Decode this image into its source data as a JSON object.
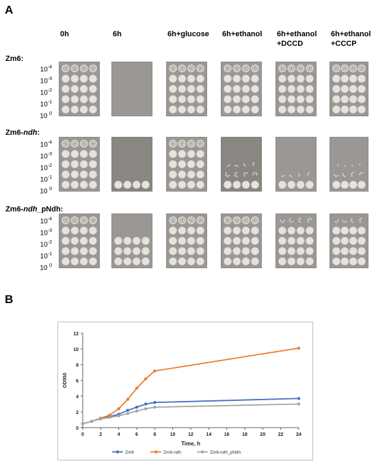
{
  "panels": {
    "a_label": "A",
    "b_label": "B"
  },
  "columns": [
    [
      "0h"
    ],
    [
      "6h"
    ],
    [
      "6h+glucose"
    ],
    [
      "6h+ethanol"
    ],
    [
      "6h+ethanol",
      "+DCCD"
    ],
    [
      "6h+ethanol",
      "+CCCP"
    ]
  ],
  "strains": [
    {
      "prefix": "Zm6",
      "italic": "",
      "suffix": ":"
    },
    {
      "prefix": "Zm6-",
      "italic": "ndh",
      "suffix": ":"
    },
    {
      "prefix": "Zm6-",
      "italic": "ndh",
      "suffix": "_pNdh:"
    }
  ],
  "dilutions": [
    {
      "base": "10",
      "exp": "-4"
    },
    {
      "base": "10",
      "exp": "-3"
    },
    {
      "base": "10",
      "exp": "-2"
    },
    {
      "base": "10",
      "exp": "-1"
    },
    {
      "base": "10 ",
      "exp": "0"
    }
  ],
  "plate_growth": [
    [
      [
        1,
        1,
        1,
        1,
        1
      ],
      [
        0,
        0,
        0,
        0,
        0
      ],
      [
        1,
        1,
        1,
        1,
        1
      ],
      [
        1,
        1,
        1,
        1,
        1
      ],
      [
        1,
        1,
        1,
        1,
        1
      ],
      [
        1,
        1,
        1,
        1,
        1
      ]
    ],
    [
      [
        1,
        1,
        1,
        1,
        1
      ],
      [
        0,
        0,
        0,
        0,
        1
      ],
      [
        1,
        1,
        1,
        1,
        1
      ],
      [
        0,
        0,
        0.3,
        0.6,
        1
      ],
      [
        0,
        0,
        0,
        0.3,
        1
      ],
      [
        0,
        0,
        0.2,
        0.5,
        1
      ]
    ],
    [
      [
        1,
        1,
        1,
        1,
        1
      ],
      [
        0,
        0,
        1,
        1,
        1
      ],
      [
        1,
        1,
        1,
        1,
        1
      ],
      [
        1,
        1,
        1,
        1,
        1
      ],
      [
        0.6,
        1,
        1,
        1,
        1
      ],
      [
        0.5,
        1,
        1,
        1,
        1
      ]
    ]
  ],
  "chart_data": {
    "type": "line",
    "title": "",
    "xlabel": "Time, h",
    "ylabel": "OD550",
    "xlim": [
      0,
      24
    ],
    "ylim": [
      0,
      12
    ],
    "xticks": [
      0,
      2,
      4,
      6,
      8,
      10,
      12,
      14,
      16,
      18,
      20,
      22,
      24
    ],
    "yticks": [
      0,
      2,
      4,
      6,
      8,
      10,
      12
    ],
    "grid": false,
    "legend_position": "bottom",
    "series": [
      {
        "name": "Zm6",
        "color": "#4472c4",
        "x": [
          0,
          1,
          2,
          3,
          4,
          5,
          6,
          7,
          8,
          24
        ],
        "y": [
          0.5,
          0.8,
          1.2,
          1.4,
          1.7,
          2.2,
          2.6,
          3.0,
          3.2,
          3.7
        ]
      },
      {
        "name": "Zm6-ndh",
        "color": "#ed7d31",
        "x": [
          0,
          1,
          2,
          3,
          4,
          5,
          6,
          7,
          8,
          24
        ],
        "y": [
          0.5,
          0.8,
          1.2,
          1.6,
          2.4,
          3.6,
          5.0,
          6.2,
          7.2,
          10.1
        ]
      },
      {
        "name": "Zm6-ndh_pNdh",
        "color": "#a5a5a5",
        "x": [
          0,
          1,
          2,
          3,
          4,
          5,
          6,
          7,
          8,
          24
        ],
        "y": [
          0.5,
          0.8,
          1.1,
          1.3,
          1.5,
          1.8,
          2.1,
          2.4,
          2.6,
          3.0
        ]
      }
    ]
  }
}
